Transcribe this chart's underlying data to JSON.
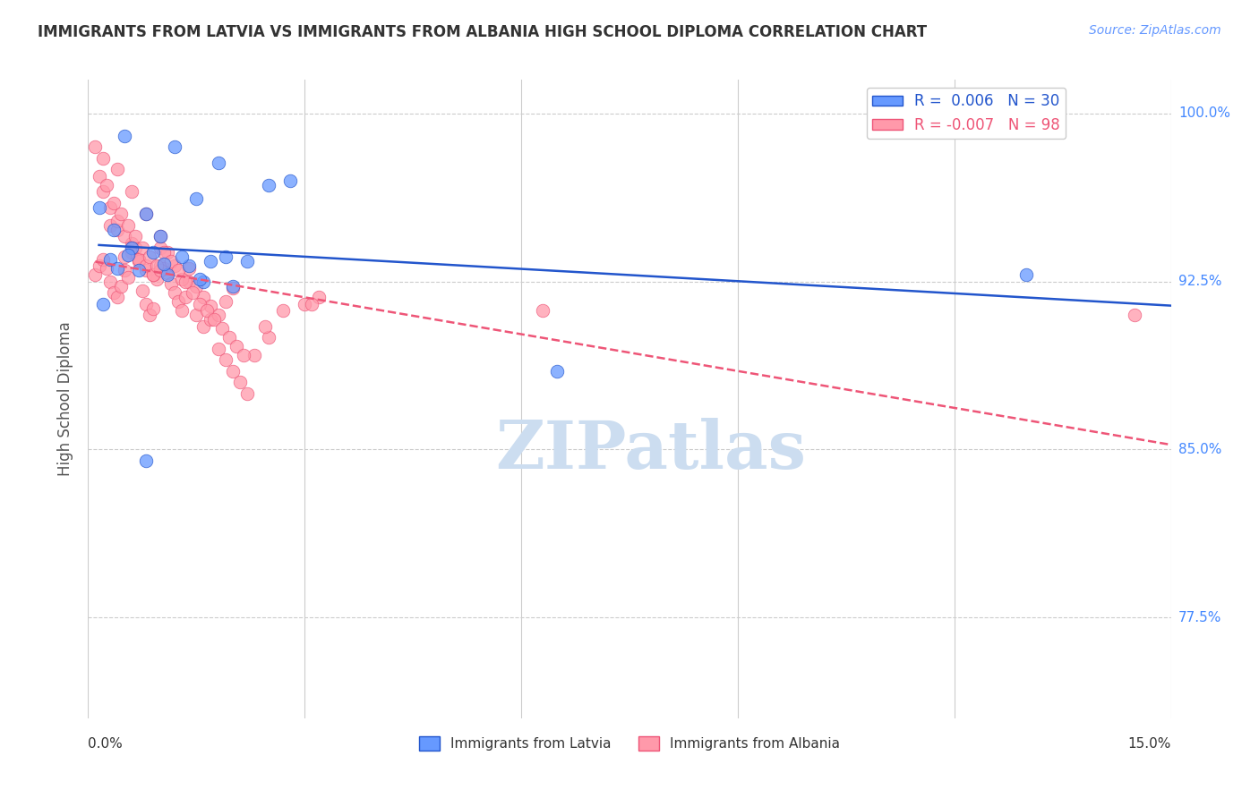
{
  "title": "IMMIGRANTS FROM LATVIA VS IMMIGRANTS FROM ALBANIA HIGH SCHOOL DIPLOMA CORRELATION CHART",
  "source": "Source: ZipAtlas.com",
  "ylabel": "High School Diploma",
  "yticks": [
    100.0,
    92.5,
    85.0,
    77.5
  ],
  "xmin": 0.0,
  "xmax": 15.0,
  "ymin": 73.0,
  "ymax": 101.5,
  "R_latvia": 0.006,
  "R_albania": -0.007,
  "N_latvia": 30,
  "N_albania": 98,
  "color_latvia": "#6699ff",
  "color_albania": "#ff99aa",
  "trendline_latvia_color": "#2255cc",
  "trendline_albania_color": "#ee5577",
  "watermark": "ZIPatlas",
  "watermark_color": "#ccddf0",
  "legend_label_latvia": "Immigrants from Latvia",
  "legend_label_albania": "Immigrants from Albania",
  "latvia_x": [
    0.5,
    1.2,
    1.8,
    0.8,
    1.5,
    2.5,
    0.3,
    0.6,
    0.9,
    1.0,
    1.4,
    1.9,
    2.2,
    0.4,
    0.7,
    1.1,
    1.6,
    2.0,
    0.2,
    0.8,
    1.3,
    1.7,
    2.8,
    6.5,
    0.15,
    0.35,
    0.55,
    1.05,
    1.55,
    13.0
  ],
  "latvia_y": [
    99.0,
    98.5,
    97.8,
    95.5,
    96.2,
    96.8,
    93.5,
    94.0,
    93.8,
    94.5,
    93.2,
    93.6,
    93.4,
    93.1,
    93.0,
    92.8,
    92.5,
    92.3,
    91.5,
    84.5,
    93.6,
    93.4,
    97.0,
    88.5,
    95.8,
    94.8,
    93.7,
    93.3,
    92.6,
    92.8
  ],
  "albania_x": [
    0.1,
    0.15,
    0.2,
    0.25,
    0.3,
    0.35,
    0.4,
    0.45,
    0.5,
    0.55,
    0.6,
    0.65,
    0.7,
    0.75,
    0.8,
    0.85,
    0.9,
    0.95,
    1.0,
    1.05,
    1.1,
    1.15,
    1.2,
    1.25,
    1.3,
    1.35,
    1.4,
    1.5,
    1.6,
    1.7,
    1.8,
    1.9,
    2.0,
    2.1,
    2.2,
    2.3,
    2.5,
    2.7,
    3.0,
    3.2,
    0.3,
    0.4,
    0.5,
    0.6,
    0.7,
    0.8,
    0.9,
    1.0,
    1.1,
    1.2,
    1.3,
    1.4,
    1.5,
    1.6,
    1.7,
    1.8,
    1.9,
    2.0,
    0.2,
    0.3,
    0.4,
    0.5,
    0.6,
    0.7,
    0.8,
    0.9,
    1.0,
    0.15,
    0.25,
    0.35,
    0.45,
    0.55,
    0.65,
    0.75,
    0.85,
    0.95,
    1.05,
    1.15,
    1.25,
    1.35,
    1.45,
    1.55,
    1.65,
    1.75,
    1.85,
    1.95,
    2.05,
    2.15,
    2.45,
    3.1,
    0.1,
    0.2,
    0.4,
    0.6,
    0.8,
    1.0,
    6.3,
    14.5
  ],
  "albania_y": [
    92.8,
    93.2,
    93.5,
    93.1,
    92.5,
    92.0,
    91.8,
    92.3,
    93.0,
    92.7,
    93.8,
    94.0,
    93.5,
    92.1,
    91.5,
    91.0,
    91.3,
    92.6,
    93.2,
    93.1,
    92.9,
    92.4,
    92.0,
    91.6,
    91.2,
    91.8,
    92.5,
    91.0,
    90.5,
    90.8,
    89.5,
    89.0,
    88.5,
    88.0,
    87.5,
    89.2,
    90.0,
    91.2,
    91.5,
    91.8,
    95.0,
    94.8,
    93.6,
    94.2,
    93.4,
    93.0,
    92.8,
    94.0,
    93.8,
    93.2,
    92.6,
    93.1,
    92.3,
    91.8,
    91.4,
    91.0,
    91.6,
    92.2,
    96.5,
    95.8,
    95.2,
    94.5,
    94.0,
    93.5,
    93.2,
    92.8,
    93.0,
    97.2,
    96.8,
    96.0,
    95.5,
    95.0,
    94.5,
    94.0,
    93.6,
    93.2,
    93.8,
    93.4,
    93.0,
    92.5,
    92.0,
    91.5,
    91.2,
    90.8,
    90.4,
    90.0,
    89.6,
    89.2,
    90.5,
    91.5,
    98.5,
    98.0,
    97.5,
    96.5,
    95.5,
    94.5,
    91.2,
    91.0
  ]
}
